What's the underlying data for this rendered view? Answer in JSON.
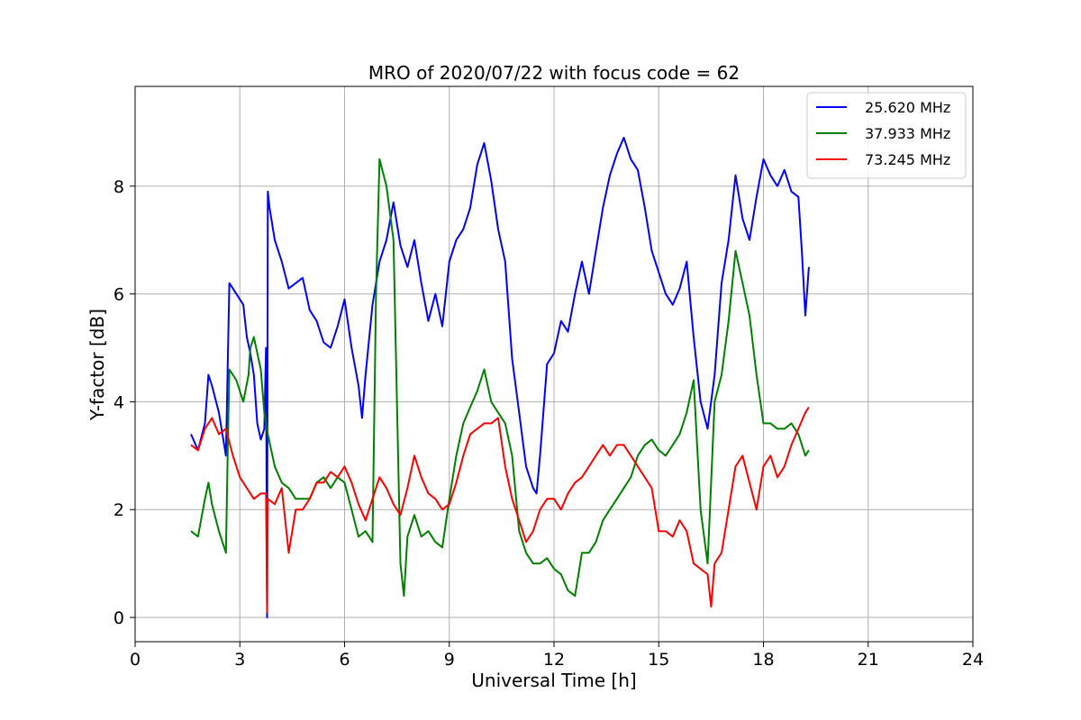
{
  "chart_data": {
    "type": "line",
    "title": "MRO of 2020/07/22 with focus code = 62",
    "xlabel": "Universal Time [h]",
    "ylabel": "Y-factor [dB]",
    "xlim": [
      0,
      24
    ],
    "ylim": [
      -0.45,
      9.85
    ],
    "xticks": [
      0,
      3,
      6,
      9,
      12,
      15,
      18,
      21,
      24
    ],
    "yticks": [
      0,
      2,
      4,
      6,
      8
    ],
    "grid": true,
    "legend_position": "top-right",
    "series": [
      {
        "name": "25.620 MHz",
        "color": "#0000ff",
        "x": [
          1.6,
          1.8,
          2.0,
          2.1,
          2.2,
          2.4,
          2.6,
          2.7,
          2.9,
          3.1,
          3.2,
          3.3,
          3.4,
          3.5,
          3.6,
          3.7,
          3.75,
          3.78,
          3.8,
          3.85,
          4.0,
          4.2,
          4.4,
          4.6,
          4.8,
          5.0,
          5.2,
          5.4,
          5.6,
          5.8,
          6.0,
          6.2,
          6.4,
          6.5,
          6.6,
          6.8,
          7.0,
          7.2,
          7.4,
          7.6,
          7.8,
          8.0,
          8.2,
          8.4,
          8.6,
          8.8,
          9.0,
          9.2,
          9.4,
          9.6,
          9.8,
          10.0,
          10.2,
          10.4,
          10.6,
          10.8,
          11.0,
          11.2,
          11.4,
          11.5,
          11.6,
          11.8,
          12.0,
          12.2,
          12.4,
          12.6,
          12.8,
          13.0,
          13.2,
          13.4,
          13.6,
          13.8,
          14.0,
          14.2,
          14.4,
          14.6,
          14.8,
          15.0,
          15.2,
          15.4,
          15.6,
          15.8,
          16.0,
          16.2,
          16.4,
          16.6,
          16.8,
          17.0,
          17.2,
          17.4,
          17.6,
          17.8,
          18.0,
          18.2,
          18.4,
          18.6,
          18.8,
          19.0,
          19.1,
          19.2,
          19.3
        ],
        "y": [
          3.4,
          3.1,
          3.6,
          4.5,
          4.3,
          3.8,
          3.0,
          6.2,
          6.0,
          5.8,
          5.2,
          4.9,
          4.5,
          3.6,
          3.3,
          3.5,
          5.0,
          0.0,
          7.9,
          7.6,
          7.0,
          6.6,
          6.1,
          6.2,
          6.3,
          5.7,
          5.5,
          5.1,
          5.0,
          5.4,
          5.9,
          5.0,
          4.3,
          3.7,
          4.5,
          5.8,
          6.6,
          7.0,
          7.7,
          6.9,
          6.5,
          7.0,
          6.2,
          5.5,
          6.0,
          5.4,
          6.6,
          7.0,
          7.2,
          7.6,
          8.4,
          8.8,
          8.1,
          7.2,
          6.6,
          4.8,
          3.8,
          2.8,
          2.4,
          2.3,
          3.0,
          4.7,
          4.9,
          5.5,
          5.3,
          6.0,
          6.6,
          6.0,
          6.8,
          7.6,
          8.2,
          8.6,
          8.9,
          8.5,
          8.3,
          7.6,
          6.8,
          6.4,
          6.0,
          5.8,
          6.1,
          6.6,
          5.2,
          4.0,
          3.5,
          4.5,
          6.2,
          7.0,
          8.2,
          7.4,
          7.0,
          7.8,
          8.5,
          8.2,
          8.0,
          8.3,
          7.9,
          7.8,
          6.8,
          5.6,
          6.5
        ]
      },
      {
        "name": "37.933 MHz",
        "color": "#008000",
        "x": [
          1.6,
          1.8,
          2.0,
          2.1,
          2.2,
          2.4,
          2.6,
          2.65,
          2.7,
          2.9,
          3.1,
          3.25,
          3.3,
          3.4,
          3.6,
          3.7,
          3.8,
          4.0,
          4.2,
          4.4,
          4.6,
          4.8,
          5.0,
          5.2,
          5.4,
          5.6,
          5.8,
          6.0,
          6.2,
          6.4,
          6.6,
          6.8,
          6.9,
          7.0,
          7.2,
          7.4,
          7.6,
          7.7,
          7.8,
          8.0,
          8.2,
          8.4,
          8.6,
          8.8,
          9.0,
          9.2,
          9.4,
          9.6,
          9.8,
          10.0,
          10.2,
          10.4,
          10.6,
          10.8,
          11.0,
          11.2,
          11.4,
          11.6,
          11.8,
          12.0,
          12.2,
          12.4,
          12.6,
          12.8,
          13.0,
          13.2,
          13.4,
          13.6,
          13.8,
          14.0,
          14.2,
          14.4,
          14.6,
          14.8,
          15.0,
          15.2,
          15.4,
          15.6,
          15.8,
          16.0,
          16.2,
          16.4,
          16.6,
          16.8,
          17.0,
          17.2,
          17.4,
          17.6,
          17.8,
          18.0,
          18.2,
          18.4,
          18.6,
          18.8,
          19.0,
          19.2,
          19.3
        ],
        "y": [
          1.6,
          1.5,
          2.2,
          2.5,
          2.1,
          1.6,
          1.2,
          3.0,
          4.6,
          4.4,
          4.0,
          4.5,
          5.0,
          5.2,
          4.6,
          3.8,
          3.4,
          2.8,
          2.5,
          2.4,
          2.2,
          2.2,
          2.2,
          2.5,
          2.6,
          2.4,
          2.6,
          2.5,
          2.0,
          1.5,
          1.6,
          1.4,
          6.0,
          8.5,
          8.0,
          7.0,
          1.0,
          0.4,
          1.5,
          1.9,
          1.5,
          1.6,
          1.4,
          1.3,
          2.2,
          3.0,
          3.6,
          3.9,
          4.2,
          4.6,
          4.0,
          3.8,
          3.6,
          3.0,
          1.6,
          1.2,
          1.0,
          1.0,
          1.1,
          0.9,
          0.8,
          0.5,
          0.4,
          1.2,
          1.2,
          1.4,
          1.8,
          2.0,
          2.2,
          2.4,
          2.6,
          3.0,
          3.2,
          3.3,
          3.1,
          3.0,
          3.2,
          3.4,
          3.8,
          4.4,
          2.0,
          1.0,
          4.0,
          4.5,
          5.5,
          6.8,
          6.2,
          5.6,
          4.5,
          3.6,
          3.6,
          3.5,
          3.5,
          3.6,
          3.4,
          3.0,
          3.1
        ]
      },
      {
        "name": "73.245 MHz",
        "color": "#ff0000",
        "x": [
          1.6,
          1.8,
          2.0,
          2.2,
          2.4,
          2.6,
          2.8,
          3.0,
          3.2,
          3.4,
          3.6,
          3.75,
          3.78,
          3.8,
          4.0,
          4.2,
          4.4,
          4.6,
          4.8,
          5.0,
          5.2,
          5.4,
          5.6,
          5.8,
          6.0,
          6.2,
          6.4,
          6.6,
          6.8,
          7.0,
          7.2,
          7.4,
          7.6,
          7.8,
          8.0,
          8.2,
          8.4,
          8.6,
          8.8,
          9.0,
          9.2,
          9.4,
          9.6,
          9.8,
          10.0,
          10.2,
          10.4,
          10.6,
          10.8,
          11.0,
          11.2,
          11.4,
          11.6,
          11.8,
          12.0,
          12.2,
          12.4,
          12.6,
          12.8,
          13.0,
          13.2,
          13.4,
          13.6,
          13.8,
          14.0,
          14.2,
          14.4,
          14.6,
          14.8,
          15.0,
          15.2,
          15.4,
          15.6,
          15.8,
          16.0,
          16.2,
          16.4,
          16.5,
          16.6,
          16.8,
          17.0,
          17.2,
          17.4,
          17.6,
          17.8,
          18.0,
          18.2,
          18.4,
          18.6,
          18.8,
          19.0,
          19.2,
          19.3
        ],
        "y": [
          3.2,
          3.1,
          3.5,
          3.7,
          3.4,
          3.5,
          3.0,
          2.6,
          2.4,
          2.2,
          2.3,
          2.3,
          0.1,
          2.2,
          2.1,
          2.4,
          1.2,
          2.0,
          2.0,
          2.2,
          2.5,
          2.5,
          2.7,
          2.6,
          2.8,
          2.5,
          2.1,
          1.8,
          2.2,
          2.6,
          2.4,
          2.1,
          1.9,
          2.4,
          3.0,
          2.6,
          2.3,
          2.2,
          2.0,
          2.1,
          2.5,
          3.0,
          3.4,
          3.5,
          3.6,
          3.6,
          3.7,
          2.8,
          2.2,
          1.8,
          1.4,
          1.6,
          2.0,
          2.2,
          2.2,
          2.0,
          2.3,
          2.5,
          2.6,
          2.8,
          3.0,
          3.2,
          3.0,
          3.2,
          3.2,
          3.0,
          2.8,
          2.6,
          2.4,
          1.6,
          1.6,
          1.5,
          1.8,
          1.6,
          1.0,
          0.9,
          0.8,
          0.2,
          1.0,
          1.2,
          2.0,
          2.8,
          3.0,
          2.5,
          2.0,
          2.8,
          3.0,
          2.6,
          2.8,
          3.2,
          3.5,
          3.8,
          3.9
        ]
      }
    ]
  }
}
